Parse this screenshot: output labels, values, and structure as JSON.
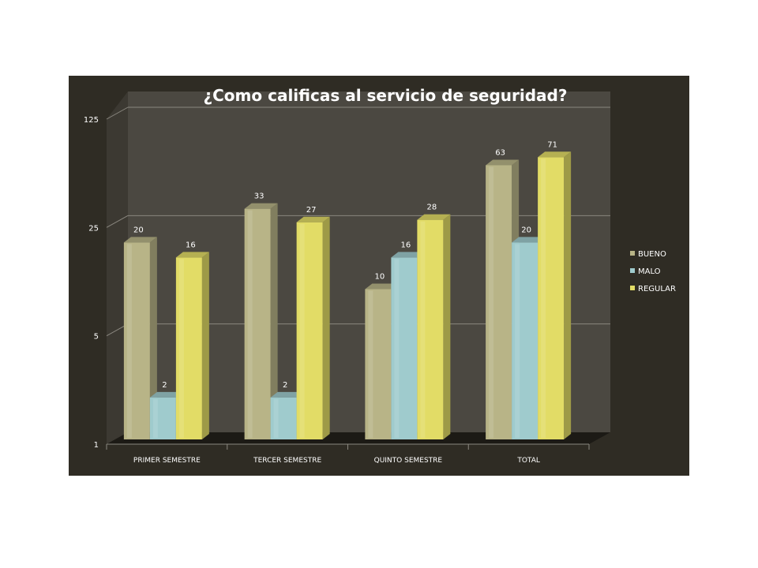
{
  "chart_data": {
    "type": "bar",
    "title": "¿Como calificas al servicio de seguridad?",
    "scale": "log5",
    "y_ticks": [
      "1",
      "5",
      "25",
      "125"
    ],
    "ylim": [
      1,
      125
    ],
    "categories": [
      "PRIMER SEMESTRE",
      "TERCER SEMESTRE",
      "QUINTO SEMESTRE",
      "TOTAL"
    ],
    "series": [
      {
        "name": "BUENO",
        "color": "#b8b487",
        "values": [
          20,
          33,
          10,
          63
        ]
      },
      {
        "name": "MALO",
        "color": "#9fcbcd",
        "values": [
          2,
          2,
          16,
          20
        ]
      },
      {
        "name": "REGULAR",
        "color": "#e2dc66",
        "values": [
          16,
          27,
          28,
          71
        ]
      }
    ],
    "data_labels": [
      [
        "20",
        null,
        "16"
      ],
      [
        "33",
        "2",
        "27"
      ],
      [
        "10",
        "16",
        "28"
      ],
      [
        "63",
        "20",
        "71"
      ]
    ],
    "malo_labels": [
      "2",
      "2",
      "16",
      "20"
    ],
    "legend_position": "right",
    "grid": true,
    "style": "3d-clustered-column"
  }
}
